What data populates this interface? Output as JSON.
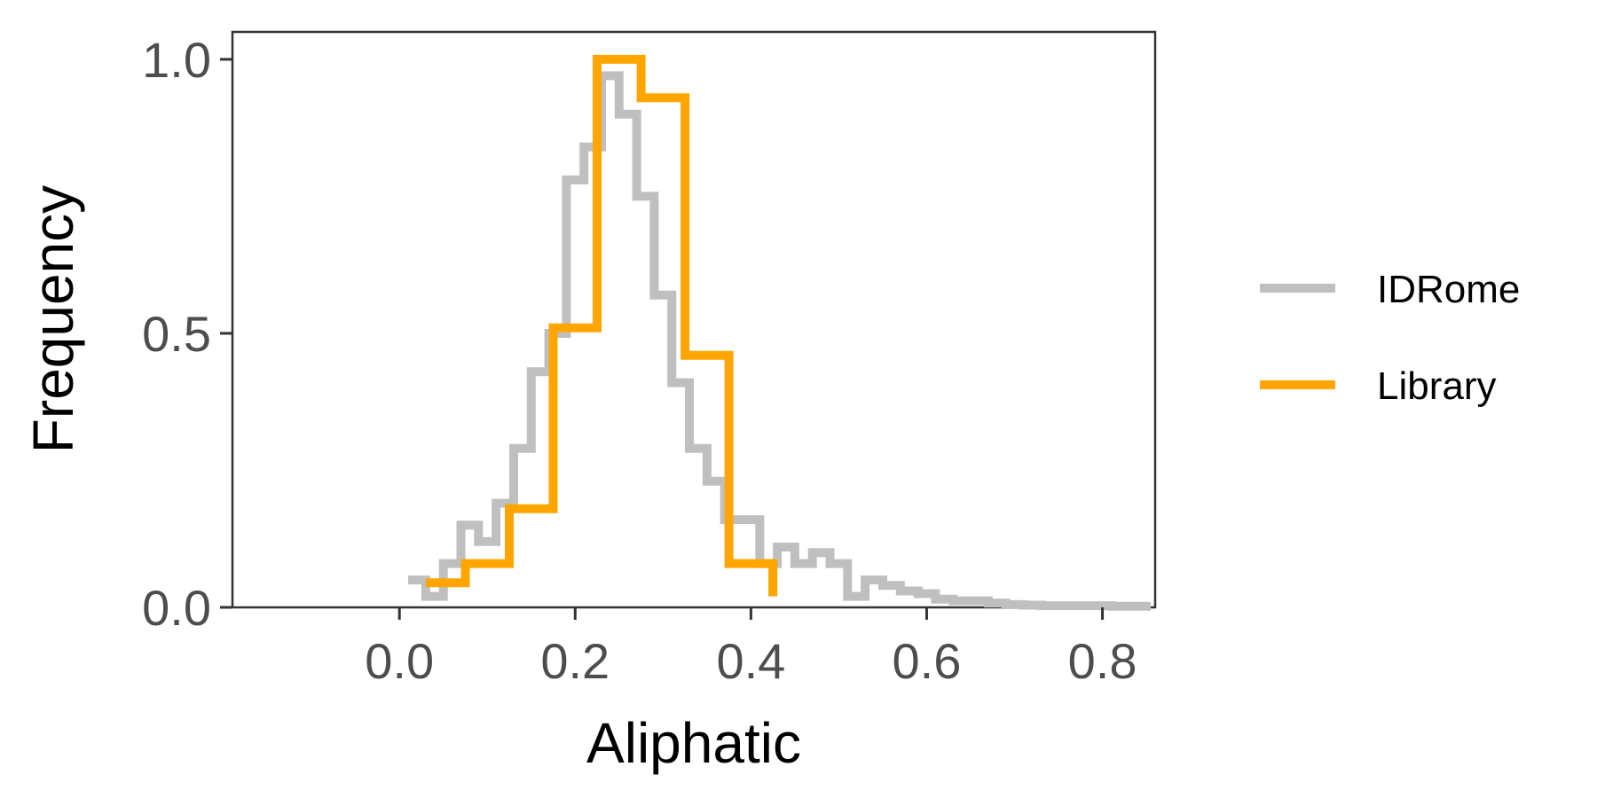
{
  "chart_data": {
    "type": "line",
    "subtype": "step-histogram",
    "xlabel": "Aliphatic",
    "ylabel": "Frequency",
    "xlim": [
      -0.19,
      0.86
    ],
    "ylim": [
      0.0,
      1.05
    ],
    "x_ticks": [
      0.0,
      0.2,
      0.4,
      0.6,
      0.8
    ],
    "x_tick_labels": [
      "0.0",
      "0.2",
      "0.4",
      "0.6",
      "0.8"
    ],
    "y_ticks": [
      0.0,
      0.5,
      1.0
    ],
    "y_tick_labels": [
      "0.0",
      "0.5",
      "1.0"
    ],
    "grid": false,
    "legend_position": "right",
    "series": [
      {
        "name": "IDRome",
        "color": "#bfbfbf",
        "step_edges": [
          0.01,
          0.03,
          0.05,
          0.07,
          0.09,
          0.11,
          0.13,
          0.15,
          0.17,
          0.19,
          0.21,
          0.23,
          0.25,
          0.27,
          0.29,
          0.31,
          0.33,
          0.35,
          0.37,
          0.39,
          0.41,
          0.43,
          0.45,
          0.47,
          0.49,
          0.51,
          0.53,
          0.55,
          0.57,
          0.59,
          0.61,
          0.63,
          0.65,
          0.67,
          0.69,
          0.71,
          0.73,
          0.75,
          0.77,
          0.79,
          0.81,
          0.83,
          0.855
        ],
        "values": [
          0.05,
          0.02,
          0.08,
          0.15,
          0.12,
          0.19,
          0.29,
          0.43,
          0.5,
          0.78,
          0.84,
          0.97,
          0.9,
          0.75,
          0.57,
          0.41,
          0.29,
          0.23,
          0.16,
          0.16,
          0.08,
          0.11,
          0.08,
          0.1,
          0.08,
          0.02,
          0.05,
          0.04,
          0.03,
          0.025,
          0.015,
          0.012,
          0.012,
          0.008,
          0.005,
          0.004,
          0.003,
          0.003,
          0.003,
          0.003,
          0.002,
          0.002
        ]
      },
      {
        "name": "Library",
        "color": "#ffa500",
        "step_edges": [
          0.03,
          0.075,
          0.125,
          0.175,
          0.225,
          0.275,
          0.325,
          0.375,
          0.425
        ],
        "values": [
          0.045,
          0.08,
          0.18,
          0.51,
          1.0,
          0.93,
          0.46,
          0.08
        ],
        "end_value": 0.02
      }
    ]
  }
}
